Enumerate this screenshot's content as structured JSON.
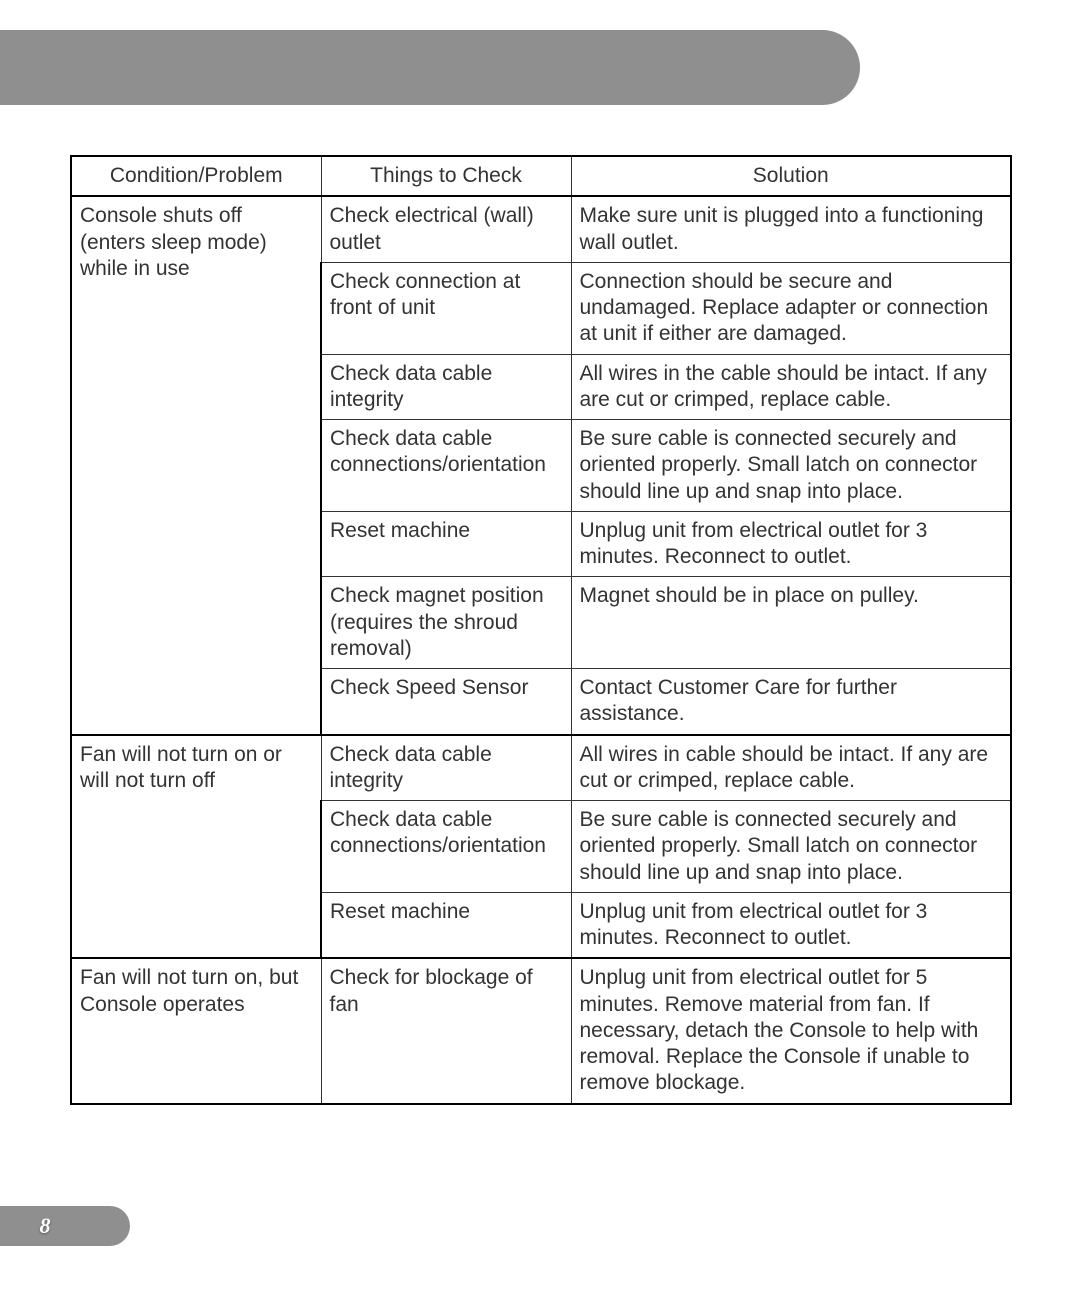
{
  "page_number": "8",
  "colors": {
    "band": "#8f8f8f",
    "text": "#333333",
    "border": "#333333",
    "page_bg": "#ffffff",
    "page_num_text": "#ffffff"
  },
  "table": {
    "headers": [
      "Condition/Problem",
      "Things to Check",
      "Solution"
    ],
    "groups": [
      {
        "condition": "Console shuts off (enters sleep mode) while in use",
        "rows": [
          {
            "check": "Check electrical (wall) outlet",
            "solution": "Make sure unit is plugged into a functioning wall outlet."
          },
          {
            "check": "Check connection at front of unit",
            "solution": "Connection should be secure and undamaged. Replace adapter or connection at unit if either are damaged."
          },
          {
            "check": "Check data cable integrity",
            "solution": "All wires in the cable should be intact. If any are cut or crimped, replace cable."
          },
          {
            "check": "Check data cable connections/orientation",
            "solution": "Be sure cable is connected securely and oriented properly. Small latch on connector should line up and snap into place."
          },
          {
            "check": "Reset machine",
            "solution": "Unplug unit from electrical outlet for 3 minutes. Reconnect to outlet."
          },
          {
            "check": "Check magnet position (requires the shroud removal)",
            "solution": "Magnet should be in place on pulley."
          },
          {
            "check": "Check Speed Sensor",
            "solution": "Contact Customer Care for further assistance."
          }
        ]
      },
      {
        "condition": "Fan will not turn on or will not turn off",
        "rows": [
          {
            "check": "Check data cable integrity",
            "solution": "All wires in cable should be intact. If any are cut or crimped, replace cable."
          },
          {
            "check": "Check data cable connections/orientation",
            "solution": "Be sure cable is connected securely and oriented properly. Small latch on connector should line up and snap into place."
          },
          {
            "check": "Reset machine",
            "solution": "Unplug unit from electrical outlet for 3 minutes. Reconnect to outlet."
          }
        ]
      },
      {
        "condition": "Fan will not turn on, but Console operates",
        "rows": [
          {
            "check": "Check for blockage of fan",
            "solution": "Unplug unit from electrical outlet for 5 minutes. Remove material from fan. If necessary, detach the Console to help with removal. Replace the Console if unable to remove blockage."
          }
        ]
      }
    ]
  }
}
